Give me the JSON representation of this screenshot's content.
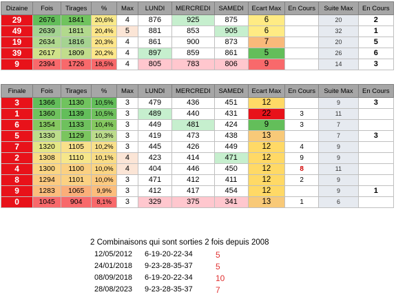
{
  "tables": [
    {
      "headers": [
        "Dizaine",
        "Fois",
        "Tirages",
        "%",
        "Max",
        "LUNDI",
        "MERCREDI",
        "SAMEDI",
        "Ecart Max",
        "En Cours",
        "Suite Max",
        "En Cours"
      ],
      "rows": [
        {
          "k": "29",
          "fois": "2676",
          "tirages": "1841",
          "pct": "20,6%",
          "max": "4",
          "lundi": "876",
          "mercredi": "925",
          "samedi": "875",
          "ecart": "6",
          "encours": "",
          "suite": "20",
          "encours2": "2",
          "bg": {
            "k": "#e8121a",
            "fois": "#63be5a",
            "tirages": "#70c35e",
            "pct": "#f8e98a",
            "max": "#ffffff",
            "lundi": "#ffffff",
            "mercredi": "#c6efce",
            "samedi": "#ffffff",
            "ecart": "#ffeb84",
            "encours": "#ffffff",
            "encours2": "#ffffff"
          }
        },
        {
          "k": "49",
          "fois": "2639",
          "tirages": "1811",
          "pct": "20,4%",
          "max": "5",
          "lundi": "881",
          "mercredi": "853",
          "samedi": "905",
          "ecart": "6",
          "encours": "",
          "suite": "32",
          "encours2": "1",
          "bg": {
            "k": "#e8121a",
            "fois": "#a3d391",
            "tirages": "#b2d98d",
            "pct": "#fde68a",
            "max": "#fbe5d6",
            "lundi": "#ffffff",
            "mercredi": "#ffffff",
            "samedi": "#c6efce",
            "ecart": "#ffeb84",
            "encours": "#ffffff",
            "encours2": "#ffffff"
          }
        },
        {
          "k": "19",
          "fois": "2634",
          "tirages": "1816",
          "pct": "20,3%",
          "max": "4",
          "lundi": "861",
          "mercredi": "900",
          "samedi": "873",
          "ecart": "7",
          "encours": "",
          "suite": "20",
          "encours2": "5",
          "bg": {
            "k": "#e8121a",
            "fois": "#b0d98f",
            "tirages": "#a5d391",
            "pct": "#fde68a",
            "max": "#ffffff",
            "lundi": "#ffffff",
            "mercredi": "#ffffff",
            "samedi": "#ffffff",
            "ecart": "#f8b97a",
            "encours": "#ffffff",
            "encours2": "#ffffff"
          }
        },
        {
          "k": "39",
          "fois": "2617",
          "tirages": "1809",
          "pct": "20,2%",
          "max": "4",
          "lundi": "897",
          "mercredi": "859",
          "samedi": "861",
          "ecart": "5",
          "encours": "",
          "suite": "26",
          "encours2": "6",
          "bg": {
            "k": "#e8121a",
            "fois": "#d0e28a",
            "tirages": "#c1dd8c",
            "pct": "#fde88a",
            "max": "#ffffff",
            "lundi": "#c6efce",
            "mercredi": "#ffffff",
            "samedi": "#ffffff",
            "ecart": "#63be5a",
            "encours": "#ffffff",
            "encours2": "#ffffff"
          }
        },
        {
          "k": "9",
          "fois": "2394",
          "tirages": "1726",
          "pct": "18,5%",
          "max": "4",
          "lundi": "805",
          "mercredi": "783",
          "samedi": "806",
          "ecart": "9",
          "encours": "",
          "suite": "14",
          "encours2": "3",
          "bg": {
            "k": "#e8121a",
            "fois": "#f8696b",
            "tirages": "#f8696b",
            "pct": "#f8696b",
            "max": "#ffffff",
            "lundi": "#ffc7ce",
            "mercredi": "#ffc7ce",
            "samedi": "#ffc7ce",
            "ecart": "#f8696b",
            "encours": "#ffffff",
            "encours2": "#ffffff"
          }
        }
      ]
    },
    {
      "headers": [
        "Finale",
        "Fois",
        "Tirages",
        "%",
        "Max",
        "LUNDI",
        "MERCREDI",
        "SAMEDI",
        "Ecart Max",
        "En Cours",
        "Suite Max",
        "En Cours"
      ],
      "rows": [
        {
          "k": "3",
          "fois": "1366",
          "tirages": "1130",
          "pct": "10,5%",
          "max": "3",
          "lundi": "479",
          "mercredi": "436",
          "samedi": "451",
          "ecart": "12",
          "encours": "",
          "suite": "9",
          "encours2": "3",
          "bg": {
            "k": "#e8121a",
            "fois": "#63be5a",
            "tirages": "#70c35e",
            "pct": "#63be5a",
            "max": "#ffffff",
            "lundi": "#ffffff",
            "mercredi": "#ffffff",
            "samedi": "#ffffff",
            "ecart": "#ffd966",
            "encours": "#ffffff",
            "encours2": "#ffffff"
          }
        },
        {
          "k": "1",
          "fois": "1360",
          "tirages": "1139",
          "pct": "10,5%",
          "max": "3",
          "lundi": "489",
          "mercredi": "440",
          "samedi": "431",
          "ecart": "22",
          "encours": "3",
          "suite": "11",
          "encours2": "",
          "bg": {
            "k": "#e8121a",
            "fois": "#6fc25d",
            "tirages": "#63be5a",
            "pct": "#6fc25d",
            "max": "#ffffff",
            "lundi": "#c6efce",
            "mercredi": "#ffffff",
            "samedi": "#ffffff",
            "ecart": "#e8121a",
            "encours": "#ffffff",
            "encours2": "#ffffff"
          }
        },
        {
          "k": "6",
          "fois": "1354",
          "tirages": "1133",
          "pct": "10,4%",
          "max": "3",
          "lundi": "449",
          "mercredi": "481",
          "samedi": "424",
          "ecart": "9",
          "encours": "3",
          "suite": "7",
          "encours2": "",
          "bg": {
            "k": "#e8121a",
            "fois": "#85c860",
            "tirages": "#6ec15d",
            "pct": "#85c860",
            "max": "#ffffff",
            "lundi": "#ffffff",
            "mercredi": "#c6efce",
            "samedi": "#ffffff",
            "ecart": "#63be5a",
            "encours": "#ffffff",
            "encours2": "#ffffff"
          }
        },
        {
          "k": "5",
          "fois": "1330",
          "tirages": "1129",
          "pct": "10,3%",
          "max": "3",
          "lundi": "419",
          "mercredi": "473",
          "samedi": "438",
          "ecart": "13",
          "encours": "",
          "suite": "7",
          "encours2": "3",
          "bg": {
            "k": "#e8121a",
            "fois": "#bcdc8b",
            "tirages": "#7ac55e",
            "pct": "#bcdc8b",
            "max": "#ffffff",
            "lundi": "#ffffff",
            "mercredi": "#ffffff",
            "samedi": "#ffffff",
            "ecart": "#f8c978",
            "encours": "#ffffff",
            "encours2": "#ffffff"
          }
        },
        {
          "k": "7",
          "fois": "1320",
          "tirages": "1105",
          "pct": "10,2%",
          "max": "3",
          "lundi": "445",
          "mercredi": "426",
          "samedi": "449",
          "ecart": "12",
          "encours": "4",
          "suite": "9",
          "encours2": "",
          "bg": {
            "k": "#e8121a",
            "fois": "#e4e686",
            "tirages": "#f9e08a",
            "pct": "#f9e08a",
            "max": "#ffffff",
            "lundi": "#ffffff",
            "mercredi": "#ffffff",
            "samedi": "#ffffff",
            "ecart": "#ffd966",
            "encours": "#ffffff",
            "encours2": "#ffffff"
          }
        },
        {
          "k": "2",
          "fois": "1308",
          "tirages": "1110",
          "pct": "10,1%",
          "max": "4",
          "lundi": "423",
          "mercredi": "414",
          "samedi": "471",
          "ecart": "12",
          "encours": "9",
          "suite": "9",
          "encours2": "",
          "bg": {
            "k": "#e8121a",
            "fois": "#f8dc86",
            "tirages": "#f6e68a",
            "pct": "#f9dd86",
            "max": "#fbe5d6",
            "lundi": "#ffffff",
            "mercredi": "#ffffff",
            "samedi": "#c6efce",
            "ecart": "#ffd966",
            "encours": "#ffffff",
            "encours2": "#ffffff"
          }
        },
        {
          "k": "4",
          "fois": "1300",
          "tirages": "1100",
          "pct": "10,0%",
          "max": "4",
          "lundi": "404",
          "mercredi": "446",
          "samedi": "450",
          "ecart": "12",
          "encours": "8",
          "suite": "11",
          "encours2": "",
          "bg": {
            "k": "#e8121a",
            "fois": "#fbd583",
            "tirages": "#fbd082",
            "pct": "#fbd583",
            "max": "#fbe5d6",
            "lundi": "#ffffff",
            "mercredi": "#ffffff",
            "samedi": "#ffffff",
            "ecart": "#ffd966",
            "encours": "#ffffff",
            "encours2": "#ffffff"
          }
        },
        {
          "k": "8",
          "fois": "1294",
          "tirales": "",
          "tirages": "1101",
          "pct": "10,0%",
          "max": "3",
          "lundi": "471",
          "mercredi": "412",
          "samedi": "411",
          "ecart": "12",
          "encours": "2",
          "suite": "9",
          "encours2": "",
          "bg": {
            "k": "#e8121a",
            "fois": "#fcca80",
            "tirages": "#fbd182",
            "pct": "#fcca80",
            "max": "#ffffff",
            "lundi": "#ffffff",
            "mercredi": "#ffffff",
            "samedi": "#ffffff",
            "ecart": "#ffd966",
            "encours": "#ffffff",
            "encours2": "#ffffff"
          }
        },
        {
          "k": "9",
          "fois": "1283",
          "tirages": "1065",
          "pct": "9,9%",
          "max": "3",
          "lundi": "412",
          "mercredi": "417",
          "samedi": "454",
          "ecart": "12",
          "encours": "",
          "suite": "9",
          "encours2": "1",
          "bg": {
            "k": "#e8121a",
            "fois": "#fcbd7c",
            "tirages": "#fbae79",
            "pct": "#fcbd7c",
            "max": "#ffffff",
            "lundi": "#ffffff",
            "mercredi": "#ffffff",
            "samedi": "#ffffff",
            "ecart": "#ffd966",
            "encours": "#ffffff",
            "encours2": "#ffffff"
          }
        },
        {
          "k": "0",
          "fois": "1045",
          "tirages": "904",
          "pct": "8,1%",
          "max": "3",
          "lundi": "329",
          "mercredi": "375",
          "samedi": "341",
          "ecart": "13",
          "encours": "1",
          "suite": "6",
          "encours2": "",
          "bg": {
            "k": "#e8121a",
            "fois": "#f8696b",
            "tirages": "#f8696b",
            "pct": "#f8696b",
            "max": "#ffffff",
            "lundi": "#ffc7ce",
            "mercredi": "#ffc7ce",
            "samedi": "#ffc7ce",
            "ecart": "#f8c978",
            "encours": "#ffffff",
            "encours2": "#ffffff"
          }
        }
      ]
    }
  ],
  "combos": {
    "title": "2 Combinaisons qui sont sorties 2 fois depuis 2008",
    "rows": [
      {
        "date": "12/05/2012",
        "numbers": "6-19-20-22-34",
        "count": "5"
      },
      {
        "date": "24/01/2018",
        "numbers": "9-23-28-35-37",
        "count": "5"
      },
      {
        "date": "08/09/2018",
        "numbers": "6-19-20-22-34",
        "count": "10"
      },
      {
        "date": "28/08/2023",
        "numbers": "9-23-28-35-37",
        "count": "7"
      }
    ]
  },
  "highlight_red_cell": "8"
}
